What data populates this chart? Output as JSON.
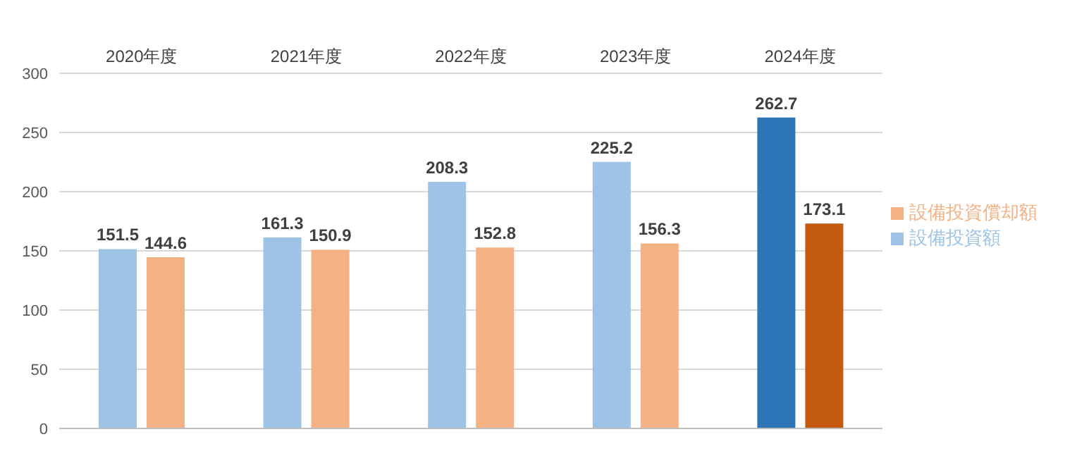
{
  "chart_data": {
    "type": "bar",
    "categories": [
      "2020年度",
      "2021年度",
      "2022年度",
      "2023年度",
      "2024年度"
    ],
    "series": [
      {
        "name": "設備投資額",
        "color": "#9dc3e6",
        "colors": [
          "#9dc3e6",
          "#9dc3e6",
          "#9dc3e6",
          "#9dc3e6",
          "#2e75b6"
        ],
        "values": [
          151.5,
          161.3,
          208.3,
          225.2,
          262.7
        ]
      },
      {
        "name": "設備投資償却額",
        "color": "#f4b183",
        "colors": [
          "#f4b183",
          "#f4b183",
          "#f4b183",
          "#f4b183",
          "#c55a11"
        ],
        "values": [
          144.6,
          150.9,
          152.8,
          156.3,
          173.1
        ]
      }
    ],
    "ylim": [
      0,
      300
    ],
    "yticks": [
      0,
      50,
      100,
      150,
      200,
      250,
      300
    ],
    "grid": "y",
    "legend": "right",
    "data_labels": true
  }
}
